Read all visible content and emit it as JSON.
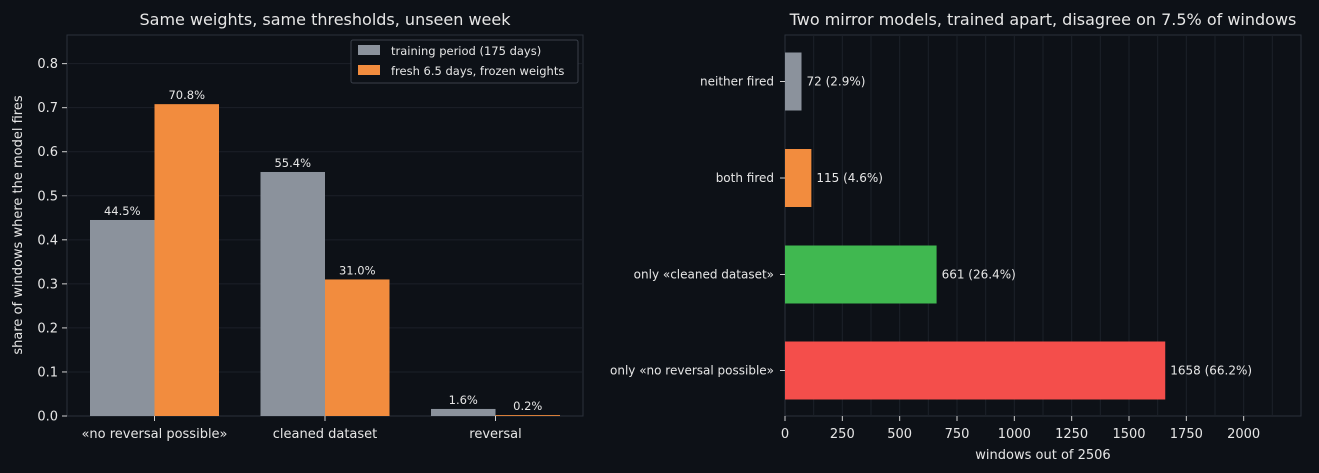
{
  "chart_data": [
    {
      "type": "bar",
      "title": "Same weights, same thresholds, unseen week",
      "xlabel": "",
      "ylabel": "share of windows where the model fires",
      "categories": [
        "«no reversal possible»",
        "cleaned dataset",
        "reversal"
      ],
      "series": [
        {
          "name": "training period (175 days)",
          "values": [
            0.445,
            0.554,
            0.016
          ],
          "labels": [
            "44.5%",
            "55.4%",
            "1.6%"
          ],
          "color": "#8b929c"
        },
        {
          "name": "fresh 6.5 days, frozen weights",
          "values": [
            0.708,
            0.31,
            0.002
          ],
          "labels": [
            "70.8%",
            "31.0%",
            "0.2%"
          ],
          "color": "#f28c3e"
        }
      ],
      "ylim": [
        0,
        0.865
      ],
      "yticks": [
        0.0,
        0.1,
        0.2,
        0.3,
        0.4,
        0.5,
        0.6,
        0.7,
        0.8
      ],
      "ytick_labels": [
        "0.0",
        "0.1",
        "0.2",
        "0.3",
        "0.4",
        "0.5",
        "0.6",
        "0.7",
        "0.8"
      ],
      "grid": true,
      "legend": "top-right"
    },
    {
      "type": "bar",
      "orientation": "horizontal",
      "title": "Two mirror models, trained apart, disagree on 7.5% of windows",
      "xlabel": "windows out of 2506",
      "ylabel": "",
      "categories": [
        "only «no reversal possible»",
        "only «cleaned dataset»",
        "both fired",
        "neither fired"
      ],
      "values": [
        1658,
        661,
        115,
        72
      ],
      "labels": [
        "1658  (66.2%)",
        "661  (26.4%)",
        "115  (4.6%)",
        "72  (2.9%)"
      ],
      "colors": [
        "#f44e4b",
        "#40b850",
        "#f28c3e",
        "#8b929c"
      ],
      "xlim": [
        0,
        2250
      ],
      "xticks": [
        0,
        250,
        500,
        750,
        1000,
        1250,
        1500,
        1750,
        2000
      ],
      "xtick_labels": [
        "0",
        "250",
        "500",
        "750",
        "1000",
        "1250",
        "1500",
        "1750",
        "2000"
      ],
      "grid": true
    }
  ]
}
